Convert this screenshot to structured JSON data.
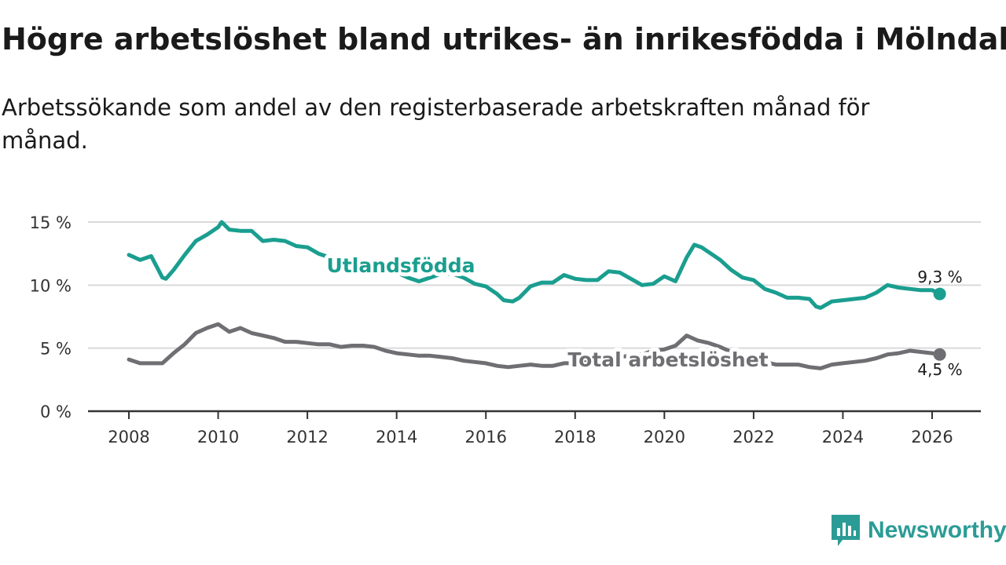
{
  "title": "Högre arbetslöshet bland utrikes- än inrikesfödda i Mölndal",
  "subtitle": "Arbetssökande som andel av den registerbaserade arbetskraften månad för månad.",
  "brand": {
    "name": "Newsworthy",
    "icon": "newsworthy-logo-icon"
  },
  "colors": {
    "foreign": "#1a9e8f",
    "total": "#6f6f73",
    "grid": "#d9d9d9",
    "axis": "#333333"
  },
  "chart_data": {
    "type": "line",
    "title": "Högre arbetslöshet bland utrikes- än inrikesfödda i Mölndal",
    "xlabel": "",
    "ylabel": "",
    "ylim": [
      0,
      15
    ],
    "xlim": [
      2007.8,
      2027.1
    ],
    "yticks": [
      0,
      5,
      10,
      15
    ],
    "ytick_labels": [
      "0 %",
      "5 %",
      "10 %",
      "15 %"
    ],
    "xticks": [
      2008,
      2010,
      2012,
      2014,
      2016,
      2018,
      2020,
      2022,
      2024,
      2026
    ],
    "xtick_labels": [
      "2008",
      "2010",
      "2012",
      "2014",
      "2016",
      "2018",
      "2020",
      "2022",
      "2024",
      "2026"
    ],
    "grid": true,
    "series": [
      {
        "name": "Utlandsfödda",
        "color": "#1a9e8f",
        "end_label": "9,3 %",
        "x": [
          2008.0,
          2008.25,
          2008.5,
          2008.75,
          2008.83,
          2009.0,
          2009.25,
          2009.5,
          2009.75,
          2010.0,
          2010.08,
          2010.25,
          2010.5,
          2010.75,
          2011.0,
          2011.25,
          2011.5,
          2011.75,
          2012.0,
          2012.25,
          2012.5,
          2012.75,
          2013.0,
          2013.25,
          2013.5,
          2013.75,
          2014.0,
          2014.25,
          2014.5,
          2014.75,
          2015.0,
          2015.25,
          2015.5,
          2015.75,
          2016.0,
          2016.25,
          2016.4,
          2016.6,
          2016.75,
          2017.0,
          2017.25,
          2017.5,
          2017.75,
          2018.0,
          2018.25,
          2018.5,
          2018.75,
          2019.0,
          2019.25,
          2019.5,
          2019.75,
          2020.0,
          2020.25,
          2020.5,
          2020.67,
          2020.83,
          2021.0,
          2021.25,
          2021.5,
          2021.75,
          2022.0,
          2022.25,
          2022.5,
          2022.75,
          2023.0,
          2023.25,
          2023.4,
          2023.5,
          2023.75,
          2024.0,
          2024.25,
          2024.5,
          2024.75,
          2025.0,
          2025.25,
          2025.5,
          2025.75,
          2026.0,
          2026.17
        ],
        "values": [
          12.4,
          12.0,
          12.3,
          10.6,
          10.5,
          11.2,
          12.4,
          13.5,
          14.0,
          14.6,
          15.0,
          14.4,
          14.3,
          14.3,
          13.5,
          13.6,
          13.5,
          13.1,
          13.0,
          12.5,
          12.2,
          11.8,
          11.5,
          11.4,
          11.2,
          11.0,
          11.0,
          10.6,
          10.3,
          10.6,
          10.9,
          10.9,
          10.6,
          10.1,
          9.9,
          9.3,
          8.8,
          8.7,
          9.0,
          9.9,
          10.2,
          10.2,
          10.8,
          10.5,
          10.4,
          10.4,
          11.1,
          11.0,
          10.5,
          10.0,
          10.1,
          10.7,
          10.3,
          12.2,
          13.2,
          13.0,
          12.6,
          12.0,
          11.2,
          10.6,
          10.4,
          9.7,
          9.4,
          9.0,
          9.0,
          8.9,
          8.3,
          8.2,
          8.7,
          8.8,
          8.9,
          9.0,
          9.4,
          10.0,
          9.8,
          9.7,
          9.6,
          9.6,
          9.3
        ]
      },
      {
        "name": "Total arbetslöshet",
        "color": "#6f6f73",
        "end_label": "4,5 %",
        "x": [
          2008.0,
          2008.25,
          2008.5,
          2008.75,
          2009.0,
          2009.25,
          2009.5,
          2009.75,
          2010.0,
          2010.25,
          2010.5,
          2010.75,
          2011.0,
          2011.25,
          2011.5,
          2011.75,
          2012.0,
          2012.25,
          2012.5,
          2012.75,
          2013.0,
          2013.25,
          2013.5,
          2013.75,
          2014.0,
          2014.25,
          2014.5,
          2014.75,
          2015.0,
          2015.25,
          2015.5,
          2015.75,
          2016.0,
          2016.25,
          2016.5,
          2016.75,
          2017.0,
          2017.25,
          2017.5,
          2017.75,
          2018.0,
          2018.25,
          2018.5,
          2018.75,
          2019.0,
          2019.25,
          2019.5,
          2019.75,
          2020.0,
          2020.25,
          2020.5,
          2020.75,
          2021.0,
          2021.25,
          2021.5,
          2021.75,
          2022.0,
          2022.25,
          2022.5,
          2022.75,
          2023.0,
          2023.25,
          2023.5,
          2023.75,
          2024.0,
          2024.25,
          2024.5,
          2024.75,
          2025.0,
          2025.25,
          2025.5,
          2025.75,
          2026.0,
          2026.17
        ],
        "values": [
          4.1,
          3.8,
          3.8,
          3.8,
          4.6,
          5.3,
          6.2,
          6.6,
          6.9,
          6.3,
          6.6,
          6.2,
          6.0,
          5.8,
          5.5,
          5.5,
          5.4,
          5.3,
          5.3,
          5.1,
          5.2,
          5.2,
          5.1,
          4.8,
          4.6,
          4.5,
          4.4,
          4.4,
          4.3,
          4.2,
          4.0,
          3.9,
          3.8,
          3.6,
          3.5,
          3.6,
          3.7,
          3.6,
          3.6,
          3.8,
          3.8,
          3.9,
          4.0,
          4.1,
          4.3,
          4.4,
          4.5,
          4.8,
          4.9,
          5.2,
          6.0,
          5.6,
          5.4,
          5.1,
          4.7,
          4.3,
          4.1,
          3.9,
          3.7,
          3.7,
          3.7,
          3.5,
          3.4,
          3.7,
          3.8,
          3.9,
          4.0,
          4.2,
          4.5,
          4.6,
          4.8,
          4.7,
          4.6,
          4.5
        ]
      }
    ]
  }
}
